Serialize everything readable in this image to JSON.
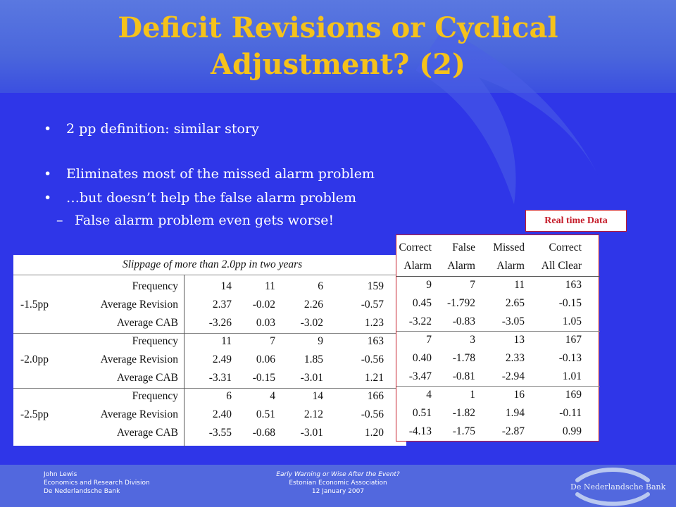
{
  "slide": {
    "title_line1": "Deficit Revisions or Cyclical",
    "title_line2": "Adjustment? (2)",
    "bullets": [
      "2 pp definition: similar story",
      "Eliminates most of the missed alarm problem",
      "…but doesn’t help the false alarm problem"
    ],
    "sub_bullet": "False alarm problem even gets worse!",
    "bullet_symbol": "•",
    "sub_symbol": "–"
  },
  "real_time_label": "Real time Data",
  "left_table": {
    "caption": "Slippage of more than 2.0pp in two years",
    "groups": [
      {
        "label": "-1.5pp",
        "rows": [
          {
            "measure": "Frequency",
            "values": [
              "14",
              "11",
              "6",
              "159"
            ]
          },
          {
            "measure": "Average Revision",
            "values": [
              "2.37",
              "-0.02",
              "2.26",
              "-0.57"
            ]
          },
          {
            "measure": "Average CAB",
            "values": [
              "-3.26",
              "0.03",
              "-3.02",
              "1.23"
            ]
          }
        ]
      },
      {
        "label": "-2.0pp",
        "rows": [
          {
            "measure": "Frequency",
            "values": [
              "11",
              "7",
              "9",
              "163"
            ]
          },
          {
            "measure": "Average Revision",
            "values": [
              "2.49",
              "0.06",
              "1.85",
              "-0.56"
            ]
          },
          {
            "measure": "Average CAB",
            "values": [
              "-3.31",
              "-0.15",
              "-3.01",
              "1.21"
            ]
          }
        ]
      },
      {
        "label": "-2.5pp",
        "rows": [
          {
            "measure": "Frequency",
            "values": [
              "6",
              "4",
              "14",
              "166"
            ]
          },
          {
            "measure": "Average Revision",
            "values": [
              "2.40",
              "0.51",
              "2.12",
              "-0.56"
            ]
          },
          {
            "measure": "Average CAB",
            "values": [
              "-3.55",
              "-0.68",
              "-3.01",
              "1.20"
            ]
          }
        ]
      }
    ]
  },
  "right_table": {
    "headers_top": [
      "Correct",
      "False",
      "Missed",
      "Correct"
    ],
    "headers_bottom": [
      "Alarm",
      "Alarm",
      "Alarm",
      "All Clear"
    ],
    "rows": [
      [
        "9",
        "7",
        "11",
        "163"
      ],
      [
        "0.45",
        "-1.792",
        "2.65",
        "-0.15"
      ],
      [
        "-3.22",
        "-0.83",
        "-3.05",
        "1.05"
      ],
      [
        "7",
        "3",
        "13",
        "167"
      ],
      [
        "0.40",
        "-1.78",
        "2.33",
        "-0.13"
      ],
      [
        "-3.47",
        "-0.81",
        "-2.94",
        "1.01"
      ],
      [
        "4",
        "1",
        "16",
        "169"
      ],
      [
        "0.51",
        "-1.82",
        "1.94",
        "-0.11"
      ],
      [
        "-4.13",
        "-1.75",
        "-2.87",
        "0.99"
      ]
    ]
  },
  "footer": {
    "left": [
      "John Lewis",
      "Economics and Research Division",
      "De Nederlandsche Bank"
    ],
    "middle": [
      "Early Warning or Wise After the Event?",
      "Estonian Economic Association",
      "12 January 2007"
    ],
    "logo_text": "De Nederlandsche Bank"
  }
}
